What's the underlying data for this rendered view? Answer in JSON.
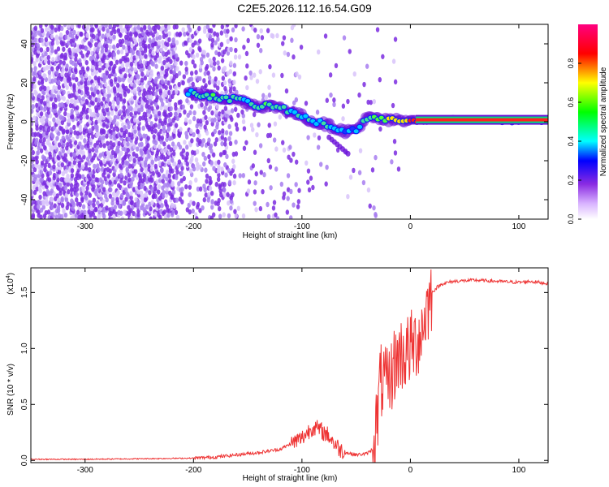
{
  "page": {
    "title": "C2E5.2026.112.16.54.G09"
  },
  "chart_data": [
    {
      "type": "heatmap",
      "title": "",
      "xlabel": "Height of straight line (km)",
      "ylabel": "Frequency (Hz)",
      "xlim": [
        -350,
        127
      ],
      "ylim": [
        -50,
        50
      ],
      "xticks": [
        -300,
        -200,
        -100,
        0,
        100
      ],
      "yticks": [
        -40,
        -20,
        0,
        20,
        40
      ],
      "grid": false,
      "colorbar": {
        "label": "Normalized spectral amplitude",
        "range": [
          0,
          1
        ],
        "ticks": [
          0.0,
          0.2,
          0.4,
          0.6,
          0.8
        ]
      },
      "ridge_points": [
        {
          "x": -205,
          "y": 15,
          "v": 0.38
        },
        {
          "x": -185,
          "y": 13,
          "v": 0.5
        },
        {
          "x": -170,
          "y": 12,
          "v": 0.48
        },
        {
          "x": -160,
          "y": 11.5,
          "v": 0.45
        },
        {
          "x": -150,
          "y": 10,
          "v": 0.42
        },
        {
          "x": -140,
          "y": 8,
          "v": 0.45
        },
        {
          "x": -130,
          "y": 8,
          "v": 0.48
        },
        {
          "x": -120,
          "y": 7.5,
          "v": 0.45
        },
        {
          "x": -110,
          "y": 5,
          "v": 0.42
        },
        {
          "x": -100,
          "y": 3,
          "v": 0.4
        },
        {
          "x": -90,
          "y": 0,
          "v": 0.38
        },
        {
          "x": -80,
          "y": -1,
          "v": 0.4
        },
        {
          "x": -70,
          "y": -3,
          "v": 0.35
        },
        {
          "x": -60,
          "y": -5,
          "v": 0.3
        },
        {
          "x": -50,
          "y": -4,
          "v": 0.32
        },
        {
          "x": -40,
          "y": 2,
          "v": 0.45
        },
        {
          "x": -30,
          "y": 1.5,
          "v": 0.55
        },
        {
          "x": -20,
          "y": 0.5,
          "v": 0.7
        },
        {
          "x": -10,
          "y": 1,
          "v": 0.8
        },
        {
          "x": 0,
          "y": 1,
          "v": 0.9
        },
        {
          "x": 127,
          "y": 0.5,
          "v": 1.0
        }
      ]
    },
    {
      "type": "line",
      "title": "",
      "xlabel": "Height of straight line (km)",
      "ylabel": "SNR (10 * v/v)",
      "scale_label": "(x10",
      "scale_exponent": "4",
      "xlim": [
        -350,
        127
      ],
      "ylim": [
        -0.02,
        1.72
      ],
      "xticks": [
        -300,
        -200,
        -100,
        0,
        100
      ],
      "yticks": [
        0.0,
        0.5,
        1.0,
        1.5
      ],
      "grid": false,
      "series": [
        {
          "color": "#ee3333",
          "x": [
            -350,
            -300,
            -250,
            -200,
            -180,
            -160,
            -140,
            -120,
            -110,
            -100,
            -95,
            -90,
            -85,
            -80,
            -75,
            -70,
            -65,
            -60,
            -50,
            -40,
            -35,
            -30,
            -28,
            -25,
            -22,
            -20,
            -15,
            -10,
            -5,
            0,
            5,
            10,
            15,
            20,
            25,
            30,
            40,
            60,
            80,
            100,
            110,
            127
          ],
          "y": [
            0.01,
            0.01,
            0.015,
            0.02,
            0.03,
            0.05,
            0.07,
            0.1,
            0.15,
            0.2,
            0.25,
            0.3,
            0.28,
            0.25,
            0.22,
            0.15,
            0.1,
            0.07,
            0.05,
            0.06,
            0.1,
            0.4,
            0.7,
            0.7,
            0.65,
            0.68,
            0.85,
            0.95,
            0.95,
            1.0,
            1.05,
            1.15,
            1.35,
            1.5,
            1.55,
            1.58,
            1.6,
            1.61,
            1.6,
            1.59,
            1.6,
            1.58
          ]
        }
      ]
    }
  ]
}
